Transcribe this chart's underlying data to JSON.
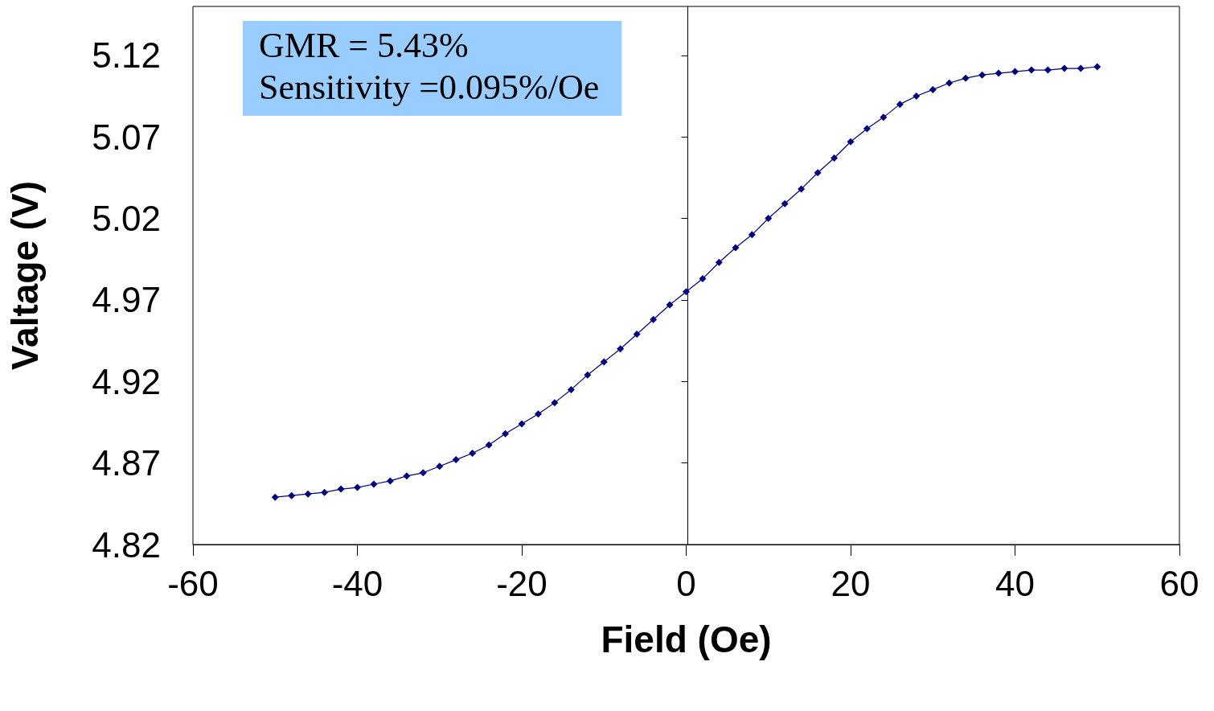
{
  "chart_data": {
    "type": "line",
    "xlabel": "Field (Oe)",
    "ylabel": "Valtage (V)",
    "annotations": [
      "GMR = 5.43%",
      "Sensitivity =0.095%/Oe"
    ],
    "x": [
      -50,
      -48,
      -46,
      -44,
      -42,
      -40,
      -38,
      -36,
      -34,
      -32,
      -30,
      -28,
      -26,
      -24,
      -22,
      -20,
      -18,
      -16,
      -14,
      -12,
      -10,
      -8,
      -6,
      -4,
      -2,
      0,
      2,
      4,
      6,
      8,
      10,
      12,
      14,
      16,
      18,
      20,
      22,
      24,
      26,
      28,
      30,
      32,
      34,
      36,
      38,
      40,
      42,
      44,
      46,
      48,
      50
    ],
    "series": [
      {
        "color": "#000080",
        "values": [
          4.849,
          4.85,
          4.851,
          4.852,
          4.854,
          4.855,
          4.857,
          4.859,
          4.862,
          4.864,
          4.868,
          4.872,
          4.876,
          4.881,
          4.888,
          4.894,
          4.9,
          4.907,
          4.915,
          4.924,
          4.932,
          4.94,
          4.949,
          4.958,
          4.967,
          4.975,
          4.983,
          4.993,
          5.002,
          5.01,
          5.02,
          5.029,
          5.038,
          5.048,
          5.057,
          5.067,
          5.075,
          5.082,
          5.09,
          5.095,
          5.099,
          5.103,
          5.106,
          5.108,
          5.109,
          5.11,
          5.111,
          5.111,
          5.112,
          5.112,
          5.113
        ]
      }
    ],
    "xlim": [
      -60,
      60
    ],
    "xticks": [
      -60,
      -40,
      -20,
      0,
      20,
      40,
      60
    ],
    "ylim": [
      4.82,
      5.15
    ],
    "yticks": [
      4.82,
      4.87,
      4.92,
      4.97,
      5.02,
      5.07,
      5.12
    ],
    "marker": "diamond",
    "line_style": "solid"
  }
}
